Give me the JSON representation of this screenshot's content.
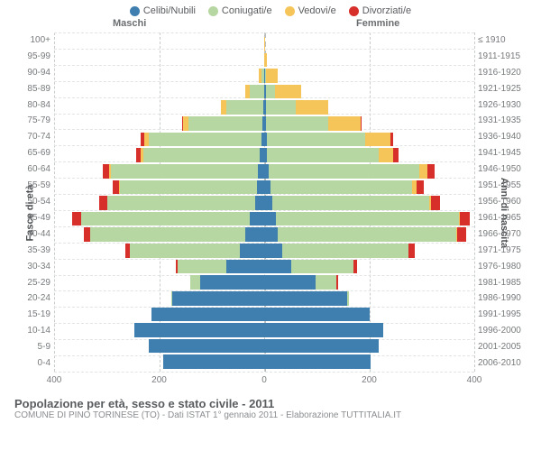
{
  "legend": [
    {
      "label": "Celibi/Nubili",
      "color": "#3f7fb0"
    },
    {
      "label": "Coniugati/e",
      "color": "#b7d7a2"
    },
    {
      "label": "Vedovi/e",
      "color": "#f6c55a"
    },
    {
      "label": "Divorziati/e",
      "color": "#d7302a"
    }
  ],
  "headers": {
    "male": "Maschi",
    "female": "Femmine"
  },
  "axes": {
    "left_title": "Fasce di età",
    "right_title": "Anni di nascita",
    "xlim": 400,
    "xticks": [
      400,
      200,
      0,
      200,
      400
    ],
    "xtick_labels": [
      "400",
      "200",
      "0",
      "200",
      "400"
    ]
  },
  "age_labels": [
    "0-4",
    "5-9",
    "10-14",
    "15-19",
    "20-24",
    "25-29",
    "30-34",
    "35-39",
    "40-44",
    "45-49",
    "50-54",
    "55-59",
    "60-64",
    "65-69",
    "70-74",
    "75-79",
    "80-84",
    "85-89",
    "90-94",
    "95-99",
    "100+"
  ],
  "birth_labels": [
    "2006-2010",
    "2001-2005",
    "1996-2000",
    "1991-1995",
    "1986-1990",
    "1981-1985",
    "1976-1980",
    "1971-1975",
    "1966-1970",
    "1961-1965",
    "1956-1960",
    "1951-1955",
    "1946-1950",
    "1941-1945",
    "1936-1940",
    "1931-1935",
    "1926-1930",
    "1921-1925",
    "1916-1920",
    "1911-1915",
    "≤ 1910"
  ],
  "rows": [
    {
      "m": {
        "c": 192,
        "k": 0,
        "v": 0,
        "d": 0
      },
      "f": {
        "c": 202,
        "k": 0,
        "v": 0,
        "d": 0
      }
    },
    {
      "m": {
        "c": 220,
        "k": 0,
        "v": 0,
        "d": 0
      },
      "f": {
        "c": 218,
        "k": 0,
        "v": 0,
        "d": 0
      }
    },
    {
      "m": {
        "c": 248,
        "k": 0,
        "v": 0,
        "d": 0
      },
      "f": {
        "c": 226,
        "k": 0,
        "v": 0,
        "d": 0
      }
    },
    {
      "m": {
        "c": 215,
        "k": 0,
        "v": 0,
        "d": 0
      },
      "f": {
        "c": 200,
        "k": 0,
        "v": 0,
        "d": 0
      }
    },
    {
      "m": {
        "c": 175,
        "k": 2,
        "v": 0,
        "d": 0
      },
      "f": {
        "c": 158,
        "k": 4,
        "v": 0,
        "d": 0
      }
    },
    {
      "m": {
        "c": 122,
        "k": 18,
        "v": 0,
        "d": 0
      },
      "f": {
        "c": 98,
        "k": 40,
        "v": 0,
        "d": 2
      }
    },
    {
      "m": {
        "c": 72,
        "k": 92,
        "v": 0,
        "d": 4
      },
      "f": {
        "c": 52,
        "k": 118,
        "v": 0,
        "d": 6
      }
    },
    {
      "m": {
        "c": 46,
        "k": 210,
        "v": 0,
        "d": 8
      },
      "f": {
        "c": 34,
        "k": 240,
        "v": 0,
        "d": 12
      }
    },
    {
      "m": {
        "c": 36,
        "k": 296,
        "v": 0,
        "d": 12
      },
      "f": {
        "c": 26,
        "k": 340,
        "v": 2,
        "d": 16
      }
    },
    {
      "m": {
        "c": 28,
        "k": 320,
        "v": 0,
        "d": 18
      },
      "f": {
        "c": 22,
        "k": 348,
        "v": 2,
        "d": 20
      }
    },
    {
      "m": {
        "c": 18,
        "k": 280,
        "v": 0,
        "d": 16
      },
      "f": {
        "c": 16,
        "k": 298,
        "v": 4,
        "d": 16
      }
    },
    {
      "m": {
        "c": 14,
        "k": 260,
        "v": 2,
        "d": 12
      },
      "f": {
        "c": 12,
        "k": 270,
        "v": 8,
        "d": 14
      }
    },
    {
      "m": {
        "c": 12,
        "k": 280,
        "v": 4,
        "d": 12
      },
      "f": {
        "c": 8,
        "k": 288,
        "v": 14,
        "d": 14
      }
    },
    {
      "m": {
        "c": 8,
        "k": 222,
        "v": 6,
        "d": 8
      },
      "f": {
        "c": 6,
        "k": 212,
        "v": 28,
        "d": 10
      }
    },
    {
      "m": {
        "c": 6,
        "k": 214,
        "v": 8,
        "d": 8
      },
      "f": {
        "c": 6,
        "k": 186,
        "v": 48,
        "d": 6
      }
    },
    {
      "m": {
        "c": 4,
        "k": 140,
        "v": 10,
        "d": 2
      },
      "f": {
        "c": 4,
        "k": 118,
        "v": 62,
        "d": 2
      }
    },
    {
      "m": {
        "c": 2,
        "k": 70,
        "v": 10,
        "d": 0
      },
      "f": {
        "c": 4,
        "k": 56,
        "v": 62,
        "d": 0
      }
    },
    {
      "m": {
        "c": 0,
        "k": 28,
        "v": 8,
        "d": 0
      },
      "f": {
        "c": 4,
        "k": 16,
        "v": 50,
        "d": 0
      }
    },
    {
      "m": {
        "c": 0,
        "k": 6,
        "v": 4,
        "d": 0
      },
      "f": {
        "c": 2,
        "k": 2,
        "v": 22,
        "d": 0
      }
    },
    {
      "m": {
        "c": 0,
        "k": 0,
        "v": 0,
        "d": 0
      },
      "f": {
        "c": 0,
        "k": 0,
        "v": 6,
        "d": 0
      }
    },
    {
      "m": {
        "c": 0,
        "k": 0,
        "v": 0,
        "d": 0
      },
      "f": {
        "c": 0,
        "k": 0,
        "v": 2,
        "d": 0
      }
    }
  ],
  "caption": {
    "title": "Popolazione per età, sesso e stato civile - 2011",
    "subtitle": "COMUNE DI PINO TORINESE (TO) - Dati ISTAT 1° gennaio 2011 - Elaborazione TUTTITALIA.IT"
  },
  "style": {
    "background": "#ffffff",
    "grid_color": "#c9cccd",
    "hgrid_color": "#e1e3e4",
    "center_color": "#b9bdbe"
  }
}
